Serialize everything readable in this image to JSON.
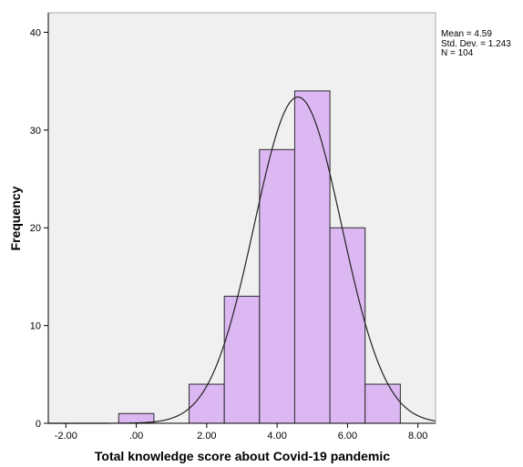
{
  "chart_data": {
    "type": "bar",
    "subtype": "histogram",
    "xlabel": "Total knowledge score about Covid-19 pandemic",
    "ylabel": "Frequency",
    "x_ticks": [
      "-2.00",
      ".00",
      "2.00",
      "4.00",
      "6.00",
      "8.00"
    ],
    "x_tick_values": [
      -2,
      0,
      2,
      4,
      6,
      8
    ],
    "y_ticks": [
      "0",
      "10",
      "20",
      "30",
      "40"
    ],
    "y_tick_values": [
      0,
      10,
      20,
      30,
      40
    ],
    "xlim": [
      -2.5,
      8.5
    ],
    "ylim": [
      0,
      42
    ],
    "bin_width": 1,
    "bins": [
      {
        "center": 0,
        "count": 1
      },
      {
        "center": 2,
        "count": 4
      },
      {
        "center": 3,
        "count": 13
      },
      {
        "center": 4,
        "count": 28
      },
      {
        "center": 5,
        "count": 34
      },
      {
        "center": 6,
        "count": 20
      },
      {
        "center": 7,
        "count": 4
      }
    ],
    "normal_curve": {
      "mean": 4.59,
      "sd": 1.243,
      "n": 104
    },
    "stats_lines": [
      "Mean = 4.59",
      "Std. Dev. = 1.243",
      "N = 104"
    ],
    "colors": {
      "bar_fill": "#dcb8f2",
      "bar_stroke": "#2b2b2b",
      "plot_bg": "#f0f0f0",
      "curve": "#222222"
    },
    "grid": false,
    "legend": "none"
  }
}
